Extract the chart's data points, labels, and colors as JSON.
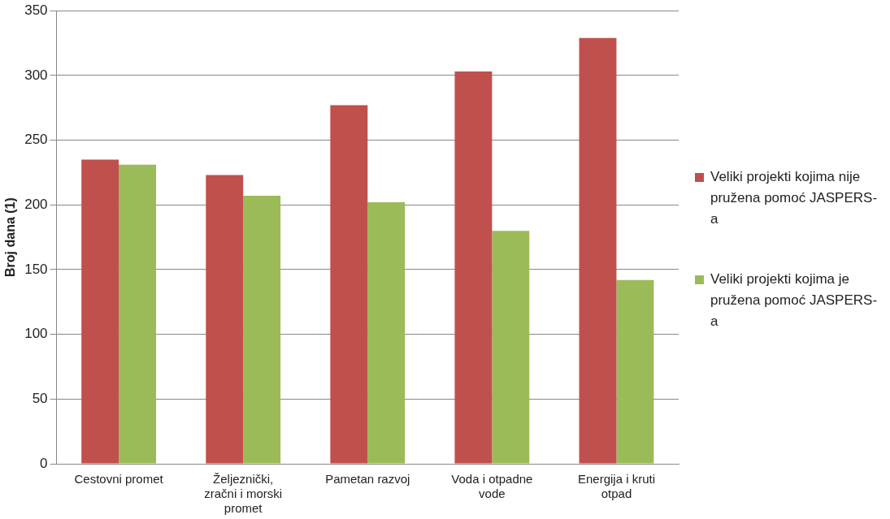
{
  "chart_data": {
    "type": "bar",
    "ylabel": "Broj dana (1)",
    "categories": [
      "Cestovni promet",
      "Željeznički, zračni i morski promet",
      "Pametan razvoj",
      "Voda i otpadne vode",
      "Energija i kruti otpad"
    ],
    "series": [
      {
        "name": "Veliki projekti kojima nije pružena pomoć JASPERS-a",
        "color": "#c0504d",
        "values": [
          235,
          223,
          277,
          303,
          329
        ]
      },
      {
        "name": "Veliki projekti kojima je pružena pomoć JASPERS-a",
        "color": "#9bbb59",
        "values": [
          231,
          207,
          202,
          180,
          142
        ]
      }
    ],
    "ylim": [
      0,
      350
    ],
    "yticks": [
      0,
      50,
      100,
      150,
      200,
      250,
      300,
      350
    ],
    "grid": "y",
    "legend": "right"
  }
}
